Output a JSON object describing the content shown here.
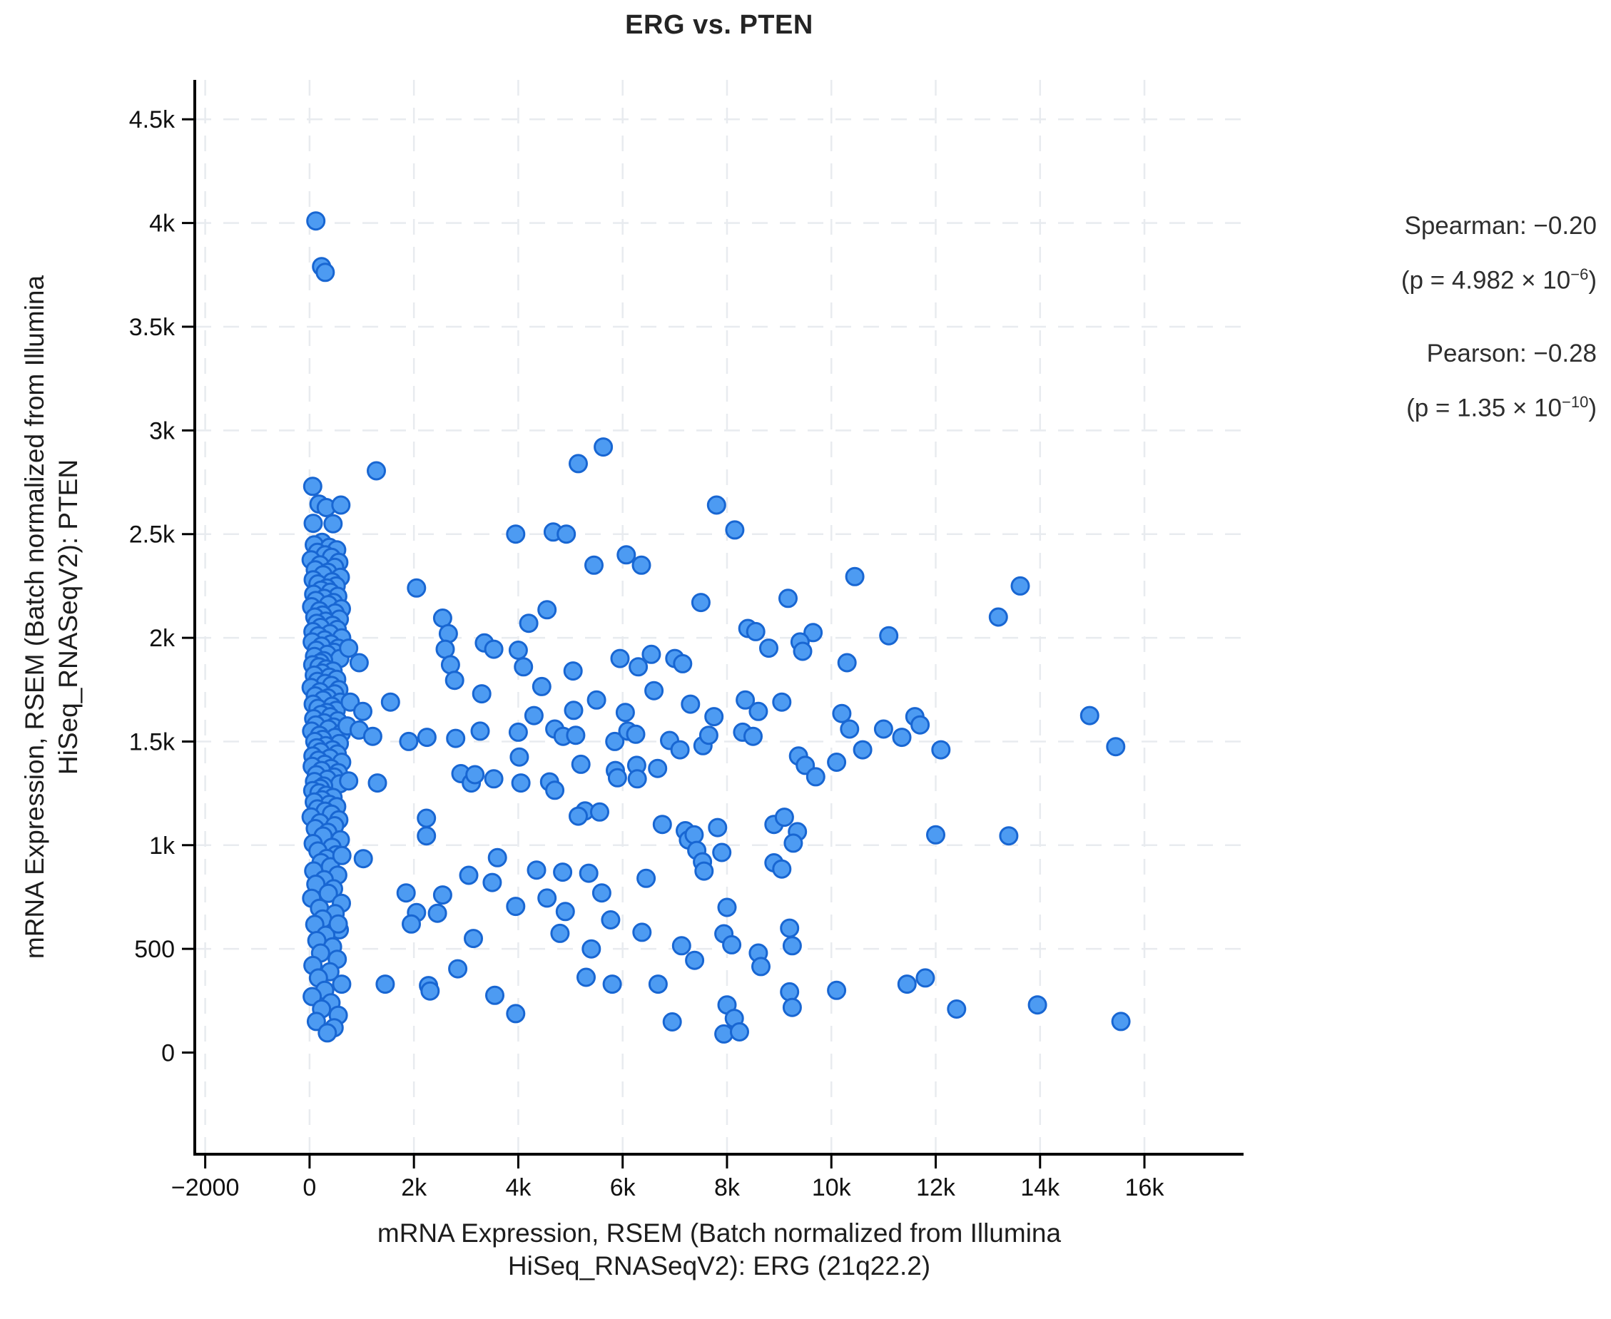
{
  "header": {
    "title": "ERG vs. PTEN"
  },
  "stats": {
    "spearman_label": "Spearman: −0.20",
    "spearman_p_prefix": "(p = 4.982 × 10",
    "spearman_p_exponent": "−6",
    "spearman_p_suffix": ")",
    "pearson_label": "Pearson: −0.28",
    "pearson_p_prefix": "(p = 1.35 × 10",
    "pearson_p_exponent": "−10",
    "pearson_p_suffix": ")"
  },
  "axes": {
    "x_label_line1": "mRNA Expression, RSEM (Batch normalized from Illumina",
    "x_label_line2": "HiSeq_RNASeqV2): ERG (21q22.2)",
    "y_label_line1": "mRNA Expression, RSEM (Batch normalized from Illumina",
    "y_label_line2": "HiSeq_RNASeqV2): PTEN"
  },
  "chart_data": {
    "type": "scatter",
    "title": "ERG vs. PTEN",
    "xlabel": "mRNA Expression, RSEM (Batch normalized from Illumina HiSeq_RNASeqV2): ERG (21q22.2)",
    "ylabel": "mRNA Expression, RSEM (Batch normalized from Illumina HiSeq_RNASeqV2): PTEN",
    "xlim": [
      -2200,
      17900
    ],
    "ylim": [
      -490,
      4690
    ],
    "x_ticks": [
      {
        "v": -2000,
        "label": "−2000",
        "grid": true
      },
      {
        "v": 0,
        "label": "0",
        "grid": true
      },
      {
        "v": 2000,
        "label": "2k",
        "grid": true
      },
      {
        "v": 4000,
        "label": "4k",
        "grid": true
      },
      {
        "v": 6000,
        "label": "6k",
        "grid": true
      },
      {
        "v": 8000,
        "label": "8k",
        "grid": true
      },
      {
        "v": 10000,
        "label": "10k",
        "grid": true
      },
      {
        "v": 12000,
        "label": "12k",
        "grid": true
      },
      {
        "v": 14000,
        "label": "14k",
        "grid": true
      },
      {
        "v": 16000,
        "label": "16k",
        "grid": true
      }
    ],
    "y_ticks": [
      {
        "v": 0,
        "label": "0",
        "grid": false
      },
      {
        "v": 500,
        "label": "500",
        "grid": true
      },
      {
        "v": 1000,
        "label": "1k",
        "grid": true
      },
      {
        "v": 1500,
        "label": "1.5k",
        "grid": true
      },
      {
        "v": 2000,
        "label": "2k",
        "grid": true
      },
      {
        "v": 2500,
        "label": "2.5k",
        "grid": true
      },
      {
        "v": 3000,
        "label": "3k",
        "grid": true
      },
      {
        "v": 3500,
        "label": "3.5k",
        "grid": true
      },
      {
        "v": 4000,
        "label": "4k",
        "grid": true
      },
      {
        "v": 4500,
        "label": "4.5k",
        "grid": true
      }
    ],
    "grid": {
      "style": "dashed",
      "color": "#e8ebef",
      "legend_position": "none"
    },
    "point_color": "#4d9bf2",
    "point_stroke_color": "#1866d2",
    "correlations": {
      "spearman": -0.2,
      "spearman_p": "4.982e-6",
      "pearson": -0.28,
      "pearson_p": "1.35e-10"
    },
    "points": [
      [
        120,
        4010
      ],
      [
        230,
        3790
      ],
      [
        300,
        3762
      ],
      [
        60,
        2730
      ],
      [
        180,
        2645
      ],
      [
        320,
        2628
      ],
      [
        600,
        2640
      ],
      [
        450,
        2550
      ],
      [
        70,
        2552
      ],
      [
        240,
        2460
      ],
      [
        90,
        2448
      ],
      [
        380,
        2436
      ],
      [
        520,
        2424
      ],
      [
        150,
        2412
      ],
      [
        300,
        2400
      ],
      [
        420,
        2388
      ],
      [
        30,
        2376
      ],
      [
        560,
        2364
      ],
      [
        200,
        2352
      ],
      [
        480,
        2340
      ],
      [
        110,
        2328
      ],
      [
        350,
        2316
      ],
      [
        260,
        2304
      ],
      [
        590,
        2292
      ],
      [
        70,
        2280
      ],
      [
        430,
        2270
      ],
      [
        160,
        2260
      ],
      [
        510,
        2250
      ],
      [
        330,
        2240
      ],
      [
        220,
        2230
      ],
      [
        400,
        2220
      ],
      [
        80,
        2210
      ],
      [
        540,
        2200
      ],
      [
        280,
        2190
      ],
      [
        120,
        2180
      ],
      [
        460,
        2170
      ],
      [
        360,
        2160
      ],
      [
        40,
        2150
      ],
      [
        610,
        2140
      ],
      [
        190,
        2130
      ],
      [
        490,
        2120
      ],
      [
        250,
        2110
      ],
      [
        100,
        2100
      ],
      [
        570,
        2090
      ],
      [
        310,
        2080
      ],
      [
        140,
        2070
      ],
      [
        440,
        2060
      ],
      [
        210,
        2050
      ],
      [
        530,
        2040
      ],
      [
        65,
        2030
      ],
      [
        390,
        2020
      ],
      [
        170,
        2010
      ],
      [
        615,
        2000
      ],
      [
        290,
        1990
      ],
      [
        50,
        1980
      ],
      [
        410,
        1970
      ],
      [
        230,
        1960
      ],
      [
        550,
        1950
      ],
      [
        130,
        1940
      ],
      [
        470,
        1930
      ],
      [
        340,
        1920
      ],
      [
        95,
        1910
      ],
      [
        580,
        1900
      ],
      [
        270,
        1890
      ],
      [
        205,
        1880
      ],
      [
        60,
        1870
      ],
      [
        180,
        1860
      ],
      [
        320,
        1850
      ],
      [
        450,
        1840
      ],
      [
        240,
        1830
      ],
      [
        90,
        1820
      ],
      [
        380,
        1810
      ],
      [
        520,
        1800
      ],
      [
        150,
        1790
      ],
      [
        300,
        1780
      ],
      [
        420,
        1770
      ],
      [
        30,
        1760
      ],
      [
        560,
        1750
      ],
      [
        200,
        1740
      ],
      [
        480,
        1730
      ],
      [
        110,
        1720
      ],
      [
        350,
        1710
      ],
      [
        260,
        1700
      ],
      [
        590,
        1690
      ],
      [
        70,
        1680
      ],
      [
        430,
        1670
      ],
      [
        160,
        1660
      ],
      [
        510,
        1650
      ],
      [
        330,
        1640
      ],
      [
        220,
        1630
      ],
      [
        400,
        1620
      ],
      [
        80,
        1610
      ],
      [
        540,
        1600
      ],
      [
        280,
        1590
      ],
      [
        120,
        1580
      ],
      [
        460,
        1570
      ],
      [
        360,
        1560
      ],
      [
        40,
        1550
      ],
      [
        610,
        1540
      ],
      [
        190,
        1530
      ],
      [
        490,
        1520
      ],
      [
        250,
        1510
      ],
      [
        100,
        1500
      ],
      [
        570,
        1490
      ],
      [
        310,
        1480
      ],
      [
        140,
        1470
      ],
      [
        440,
        1460
      ],
      [
        210,
        1450
      ],
      [
        530,
        1440
      ],
      [
        65,
        1430
      ],
      [
        390,
        1420
      ],
      [
        170,
        1410
      ],
      [
        615,
        1400
      ],
      [
        290,
        1390
      ],
      [
        50,
        1380
      ],
      [
        410,
        1370
      ],
      [
        230,
        1360
      ],
      [
        550,
        1350
      ],
      [
        130,
        1340
      ],
      [
        470,
        1329
      ],
      [
        340,
        1318
      ],
      [
        95,
        1307
      ],
      [
        580,
        1296
      ],
      [
        270,
        1285
      ],
      [
        205,
        1274
      ],
      [
        60,
        1263
      ],
      [
        180,
        1252
      ],
      [
        320,
        1241
      ],
      [
        450,
        1230
      ],
      [
        240,
        1219
      ],
      [
        90,
        1208
      ],
      [
        380,
        1197
      ],
      [
        520,
        1186
      ],
      [
        150,
        1175
      ],
      [
        300,
        1164
      ],
      [
        420,
        1150
      ],
      [
        30,
        1136
      ],
      [
        560,
        1122
      ],
      [
        200,
        1108
      ],
      [
        480,
        1094
      ],
      [
        110,
        1080
      ],
      [
        350,
        1062
      ],
      [
        260,
        1044
      ],
      [
        590,
        1026
      ],
      [
        70,
        1008
      ],
      [
        430,
        990
      ],
      [
        160,
        972
      ],
      [
        510,
        954
      ],
      [
        330,
        936
      ],
      [
        220,
        916
      ],
      [
        400,
        896
      ],
      [
        80,
        876
      ],
      [
        540,
        856
      ],
      [
        280,
        834
      ],
      [
        120,
        812
      ],
      [
        460,
        790
      ],
      [
        360,
        768
      ],
      [
        40,
        744
      ],
      [
        610,
        720
      ],
      [
        190,
        696
      ],
      [
        490,
        670
      ],
      [
        250,
        644
      ],
      [
        100,
        618
      ],
      [
        570,
        592
      ],
      [
        310,
        566
      ],
      [
        140,
        540
      ],
      [
        440,
        510
      ],
      [
        210,
        480
      ],
      [
        530,
        450
      ],
      [
        65,
        420
      ],
      [
        390,
        390
      ],
      [
        170,
        360
      ],
      [
        615,
        330
      ],
      [
        290,
        300
      ],
      [
        50,
        270
      ],
      [
        410,
        240
      ],
      [
        230,
        210
      ],
      [
        550,
        180
      ],
      [
        130,
        150
      ],
      [
        470,
        120
      ],
      [
        340,
        95
      ],
      [
        5630,
        2920
      ],
      [
        5150,
        2840
      ],
      [
        1280,
        2805
      ],
      [
        7800,
        2640
      ],
      [
        4670,
        2510
      ],
      [
        3950,
        2500
      ],
      [
        4920,
        2500
      ],
      [
        8150,
        2520
      ],
      [
        6070,
        2400
      ],
      [
        5450,
        2350
      ],
      [
        6360,
        2350
      ],
      [
        10450,
        2295
      ],
      [
        13620,
        2250
      ],
      [
        2050,
        2240
      ],
      [
        9170,
        2190
      ],
      [
        7500,
        2170
      ],
      [
        4550,
        2135
      ],
      [
        13200,
        2100
      ],
      [
        2550,
        2095
      ],
      [
        4200,
        2070
      ],
      [
        8400,
        2045
      ],
      [
        8550,
        2030
      ],
      [
        9650,
        2025
      ],
      [
        2660,
        2020
      ],
      [
        11100,
        2010
      ],
      [
        9400,
        1980
      ],
      [
        3350,
        1975
      ],
      [
        750,
        1950
      ],
      [
        2600,
        1945
      ],
      [
        3530,
        1945
      ],
      [
        4000,
        1940
      ],
      [
        9450,
        1935
      ],
      [
        6550,
        1920
      ],
      [
        7000,
        1900
      ],
      [
        5950,
        1900
      ],
      [
        950,
        1880
      ],
      [
        10300,
        1880
      ],
      [
        7150,
        1875
      ],
      [
        2700,
        1870
      ],
      [
        4100,
        1860
      ],
      [
        6300,
        1860
      ],
      [
        8800,
        1950
      ],
      [
        5050,
        1840
      ],
      [
        2780,
        1795
      ],
      [
        4450,
        1765
      ],
      [
        3300,
        1730
      ],
      [
        6600,
        1745
      ],
      [
        5500,
        1700
      ],
      [
        7300,
        1680
      ],
      [
        8350,
        1700
      ],
      [
        9050,
        1690
      ],
      [
        1550,
        1690
      ],
      [
        780,
        1690
      ],
      [
        5060,
        1650
      ],
      [
        4300,
        1625
      ],
      [
        6050,
        1640
      ],
      [
        7750,
        1620
      ],
      [
        8600,
        1645
      ],
      [
        1020,
        1645
      ],
      [
        14950,
        1625
      ],
      [
        10200,
        1635
      ],
      [
        11600,
        1620
      ],
      [
        720,
        1575
      ],
      [
        950,
        1555
      ],
      [
        1210,
        1525
      ],
      [
        1900,
        1500
      ],
      [
        2250,
        1520
      ],
      [
        2800,
        1515
      ],
      [
        3270,
        1550
      ],
      [
        4000,
        1545
      ],
      [
        4700,
        1560
      ],
      [
        4860,
        1525
      ],
      [
        5100,
        1530
      ],
      [
        5850,
        1500
      ],
      [
        6100,
        1550
      ],
      [
        6250,
        1535
      ],
      [
        6900,
        1505
      ],
      [
        7100,
        1460
      ],
      [
        7540,
        1480
      ],
      [
        7650,
        1530
      ],
      [
        8300,
        1545
      ],
      [
        8500,
        1525
      ],
      [
        9370,
        1430
      ],
      [
        9500,
        1385
      ],
      [
        10100,
        1400
      ],
      [
        10350,
        1560
      ],
      [
        10600,
        1460
      ],
      [
        11000,
        1560
      ],
      [
        11350,
        1520
      ],
      [
        11700,
        1580
      ],
      [
        12100,
        1460
      ],
      [
        15450,
        1475
      ],
      [
        9700,
        1330
      ],
      [
        2900,
        1345
      ],
      [
        3100,
        1300
      ],
      [
        3170,
        1340
      ],
      [
        3530,
        1320
      ],
      [
        4020,
        1425
      ],
      [
        4050,
        1300
      ],
      [
        4600,
        1305
      ],
      [
        4700,
        1265
      ],
      [
        5200,
        1390
      ],
      [
        5860,
        1360
      ],
      [
        5900,
        1325
      ],
      [
        6270,
        1385
      ],
      [
        6280,
        1320
      ],
      [
        6670,
        1370
      ],
      [
        750,
        1310
      ],
      [
        1300,
        1300
      ],
      [
        2240,
        1130
      ],
      [
        5280,
        1165
      ],
      [
        5150,
        1140
      ],
      [
        5560,
        1160
      ],
      [
        6760,
        1100
      ],
      [
        7200,
        1070
      ],
      [
        7260,
        1025
      ],
      [
        7370,
        1050
      ],
      [
        8900,
        1100
      ],
      [
        9100,
        1135
      ],
      [
        9350,
        1065
      ],
      [
        7820,
        1085
      ],
      [
        9270,
        1010
      ],
      [
        12000,
        1050
      ],
      [
        13400,
        1045
      ],
      [
        2240,
        1045
      ],
      [
        7420,
        975
      ],
      [
        7530,
        920
      ],
      [
        7560,
        875
      ],
      [
        7900,
        965
      ],
      [
        8900,
        915
      ],
      [
        620,
        950
      ],
      [
        1030,
        935
      ],
      [
        3600,
        940
      ],
      [
        4350,
        880
      ],
      [
        4850,
        870
      ],
      [
        5350,
        865
      ],
      [
        6450,
        840
      ],
      [
        5600,
        770
      ],
      [
        4550,
        745
      ],
      [
        3050,
        855
      ],
      [
        3500,
        820
      ],
      [
        2550,
        760
      ],
      [
        3950,
        705
      ],
      [
        8000,
        700
      ],
      [
        9050,
        885
      ],
      [
        1850,
        770
      ],
      [
        2050,
        675
      ],
      [
        2450,
        672
      ],
      [
        1950,
        620
      ],
      [
        550,
        620
      ],
      [
        9200,
        600
      ],
      [
        5770,
        640
      ],
      [
        4900,
        680
      ],
      [
        6370,
        580
      ],
      [
        4800,
        575
      ],
      [
        7940,
        573
      ],
      [
        7130,
        515
      ],
      [
        8090,
        520
      ],
      [
        9250,
        515
      ],
      [
        3140,
        550
      ],
      [
        5400,
        500
      ],
      [
        7380,
        445
      ],
      [
        8600,
        480
      ],
      [
        8650,
        415
      ],
      [
        2840,
        404
      ],
      [
        11450,
        330
      ],
      [
        11800,
        360
      ],
      [
        5300,
        363
      ],
      [
        5800,
        330
      ],
      [
        6680,
        330
      ],
      [
        10100,
        300
      ],
      [
        2280,
        323
      ],
      [
        1450,
        330
      ],
      [
        2310,
        297
      ],
      [
        9200,
        293
      ],
      [
        3550,
        276
      ],
      [
        12400,
        210
      ],
      [
        9250,
        218
      ],
      [
        13950,
        230
      ],
      [
        3950,
        188
      ],
      [
        8000,
        230
      ],
      [
        8140,
        165
      ],
      [
        6950,
        148
      ],
      [
        15550,
        150
      ],
      [
        7940,
        90
      ],
      [
        8240,
        100
      ]
    ]
  }
}
